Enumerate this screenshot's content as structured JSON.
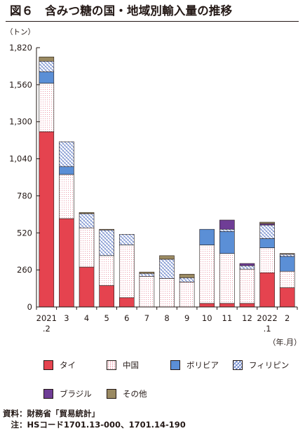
{
  "figure": {
    "title": "図６　含みつ糖の国・地域別輸入量の推移",
    "unit_label": "（トン）",
    "source": "資料：財務省「貿易統計」",
    "note": "　注：HSコード1701.13-000、1701.14-190"
  },
  "chart_data": {
    "type": "bar",
    "stacked": true,
    "categories": [
      [
        "2021",
        ".2"
      ],
      [
        "3"
      ],
      [
        "4"
      ],
      [
        "5"
      ],
      [
        "6"
      ],
      [
        "7"
      ],
      [
        "8"
      ],
      [
        "9"
      ],
      [
        "10"
      ],
      [
        "11"
      ],
      [
        "12"
      ],
      [
        "2022",
        ".1"
      ],
      [
        "2"
      ]
    ],
    "xlabel": "（年.月）",
    "ylabel": "（トン）",
    "ylim": [
      0,
      1820
    ],
    "yticks": [
      0,
      260,
      520,
      780,
      1040,
      1300,
      1560,
      1820
    ],
    "ytick_labels": [
      "0",
      "260",
      "520",
      "780",
      "1,040",
      "1,300",
      "1,560",
      "1,820"
    ],
    "grid": false,
    "legend_position": "bottom",
    "series": [
      {
        "name": "タイ",
        "key": "thai",
        "color": "#e5434f",
        "values": [
          1230,
          620,
          280,
          150,
          65,
          0,
          0,
          0,
          25,
          25,
          25,
          240,
          135
        ]
      },
      {
        "name": "中国",
        "key": "china",
        "color": "#ffffff",
        "values": [
          340,
          310,
          275,
          210,
          370,
          215,
          200,
          175,
          410,
          350,
          240,
          175,
          115
        ]
      },
      {
        "name": "ボリビア",
        "key": "bolivia",
        "color": "#5b8fd6",
        "values": [
          80,
          55,
          0,
          0,
          0,
          0,
          0,
          0,
          110,
          155,
          0,
          65,
          105
        ]
      },
      {
        "name": "フィリピン",
        "key": "philippines",
        "color": "#ffffff",
        "values": [
          75,
          175,
          100,
          180,
          75,
          20,
          135,
          30,
          0,
          15,
          25,
          95,
          15
        ]
      },
      {
        "name": "ブラジル",
        "key": "brazil",
        "color": "#6f3d96",
        "values": [
          0,
          0,
          0,
          0,
          0,
          0,
          0,
          0,
          0,
          65,
          15,
          10,
          0
        ]
      },
      {
        "name": "その他",
        "key": "other",
        "color": "#9a8a62",
        "values": [
          30,
          0,
          8,
          5,
          0,
          10,
          25,
          25,
          0,
          0,
          0,
          10,
          5
        ]
      }
    ]
  }
}
